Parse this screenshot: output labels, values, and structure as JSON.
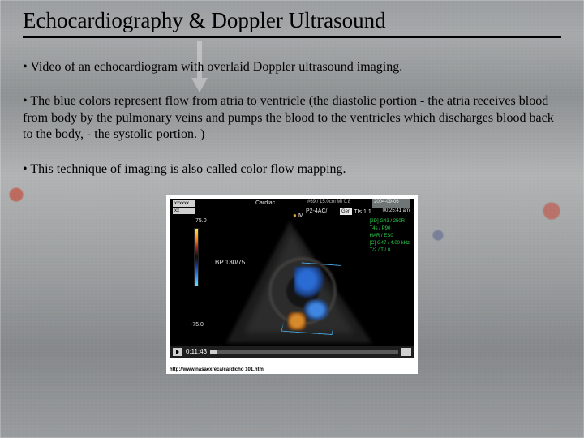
{
  "title": "Echocardiography & Doppler Ultrasound",
  "bullets": {
    "b1": "• Video of an echocardiogram with overlaid Doppler ultrasound imaging.",
    "b2": "• The blue colors represent flow from atria to ventricle (the diastolic portion - the atria receives blood from body by the pulmonary veins and pumps the blood to the ventricles which discharges blood back to the body, - the systolic portion. )",
    "b3": "• This technique of imaging is also called color flow mapping."
  },
  "echo": {
    "tl_box1": "xxxxxx",
    "tl_box2": "xx",
    "cardiac": "Cardiac",
    "badge_left": "#69   / 15.0cm MI 0.8",
    "badge_date": "2004-09-06",
    "probe": "P2-4AC/",
    "gen_chip": "Gen",
    "gen_ti": "TIs 1.1",
    "clock": "00:25:41 am",
    "green1": "[2D] G43 / 250R",
    "green2": "T4s / P90",
    "green3": "HAR / ES0",
    "green4": "[C] G47 / 4.00 kHz",
    "green5": "T/2 / T / 0",
    "n75": "75.0",
    "bp": "BP  130/75",
    "n_75": "-75.0",
    "time": "0:11:43",
    "m_label": "M"
  },
  "caption": "http://www.nasaexreca/cardicho 101.htm",
  "colors": {
    "text": "#000000",
    "echo_bg": "#000000",
    "echo_green": "#2bd34a",
    "flow_blue": "#2a6bd4",
    "flow_orange": "#d68a2c"
  }
}
